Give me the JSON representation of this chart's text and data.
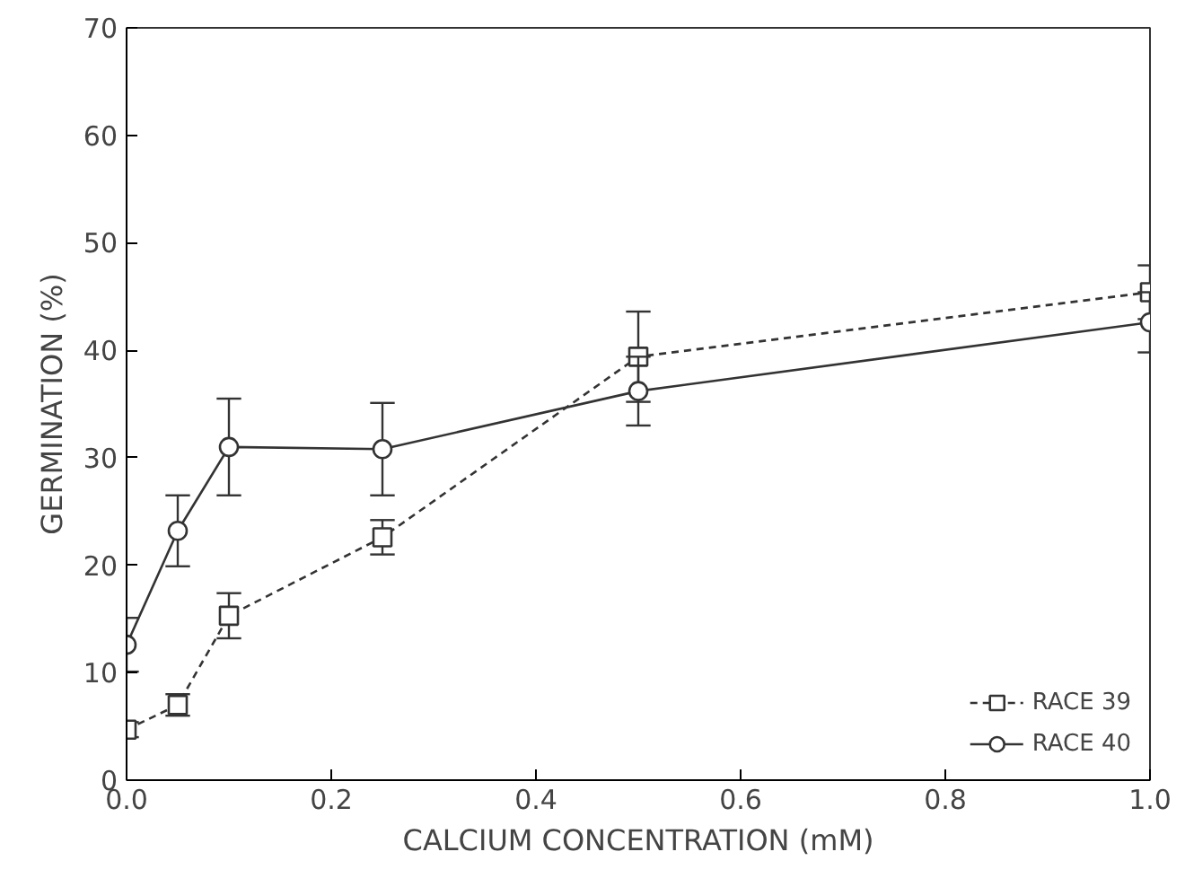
{
  "chart_data": {
    "type": "line",
    "xlabel": "CALCIUM CONCENTRATION (mM)",
    "ylabel": "GERMINATION (%)",
    "x": [
      0,
      0.05,
      0.1,
      0.25,
      0.5,
      1.0
    ],
    "xlim": [
      0,
      1.0
    ],
    "xticks": [
      {
        "value": 0,
        "label": "0.0"
      },
      0.2,
      0.4,
      0.6,
      0.8,
      {
        "value": 1.0,
        "label": "1.0"
      }
    ],
    "ylim": [
      0,
      70
    ],
    "yticks": [
      0,
      10,
      20,
      30,
      40,
      50,
      60,
      70
    ],
    "grid": false,
    "legend": "bottom right",
    "series": [
      {
        "name": "RACE 39",
        "color": "#333333",
        "marker": "square",
        "line_style": "dashed",
        "values": [
          4.7,
          7.0,
          15.3,
          22.6,
          39.4,
          45.4
        ],
        "errors": [
          0.7,
          1.0,
          2.1,
          1.6,
          4.2,
          2.5
        ]
      },
      {
        "name": "RACE 40",
        "color": "#333333",
        "marker": "circle",
        "line_style": "solid",
        "values": [
          12.6,
          23.2,
          31.0,
          30.8,
          36.2,
          42.6
        ],
        "errors": [
          2.5,
          3.3,
          4.5,
          4.3,
          3.2,
          2.8
        ]
      }
    ]
  }
}
